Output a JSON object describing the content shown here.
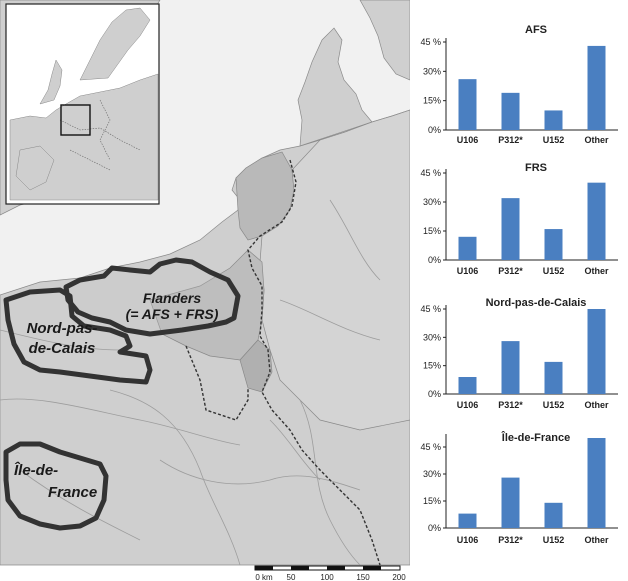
{
  "map": {
    "regions": [
      {
        "id": "flanders",
        "lines": [
          "Flanders",
          "(= AFS + FRS)"
        ]
      },
      {
        "id": "nord",
        "lines": [
          "Nord-pas-",
          "de-Calais"
        ]
      },
      {
        "id": "idf",
        "lines": [
          "Île-de-",
          "France"
        ]
      }
    ],
    "scale": {
      "labels": [
        "0 km",
        "50",
        "100",
        "150",
        "200"
      ]
    }
  },
  "chart_data": [
    {
      "type": "bar",
      "title": "AFS",
      "categories": [
        "U106",
        "P312*",
        "U152",
        "Other"
      ],
      "values": [
        26,
        19,
        10,
        43
      ],
      "ylim": [
        0,
        45
      ],
      "yticks": [
        "0%",
        "15%",
        "30%",
        "45 %"
      ],
      "bar_color": "#4a7fc1"
    },
    {
      "type": "bar",
      "title": "FRS",
      "categories": [
        "U106",
        "P312*",
        "U152",
        "Other"
      ],
      "values": [
        12,
        32,
        16,
        40
      ],
      "ylim": [
        0,
        45
      ],
      "yticks": [
        "0%",
        "15%",
        "30%",
        "45 %"
      ],
      "bar_color": "#4a7fc1"
    },
    {
      "type": "bar",
      "title": "Nord-pas-de-Calais",
      "categories": [
        "U106",
        "P312*",
        "U152",
        "Other"
      ],
      "values": [
        9,
        28,
        17,
        45
      ],
      "ylim": [
        0,
        45
      ],
      "yticks": [
        "0%",
        "15%",
        "30%",
        "45 %"
      ],
      "bar_color": "#4a7fc1"
    },
    {
      "type": "bar",
      "title": "Île-de-France",
      "categories": [
        "U106",
        "P312*",
        "U152",
        "Other"
      ],
      "values": [
        8,
        28,
        14,
        50
      ],
      "ylim": [
        0,
        50
      ],
      "yticks": [
        "0%",
        "15%",
        "30%",
        "45 %"
      ],
      "bar_color": "#4a7fc1"
    }
  ]
}
